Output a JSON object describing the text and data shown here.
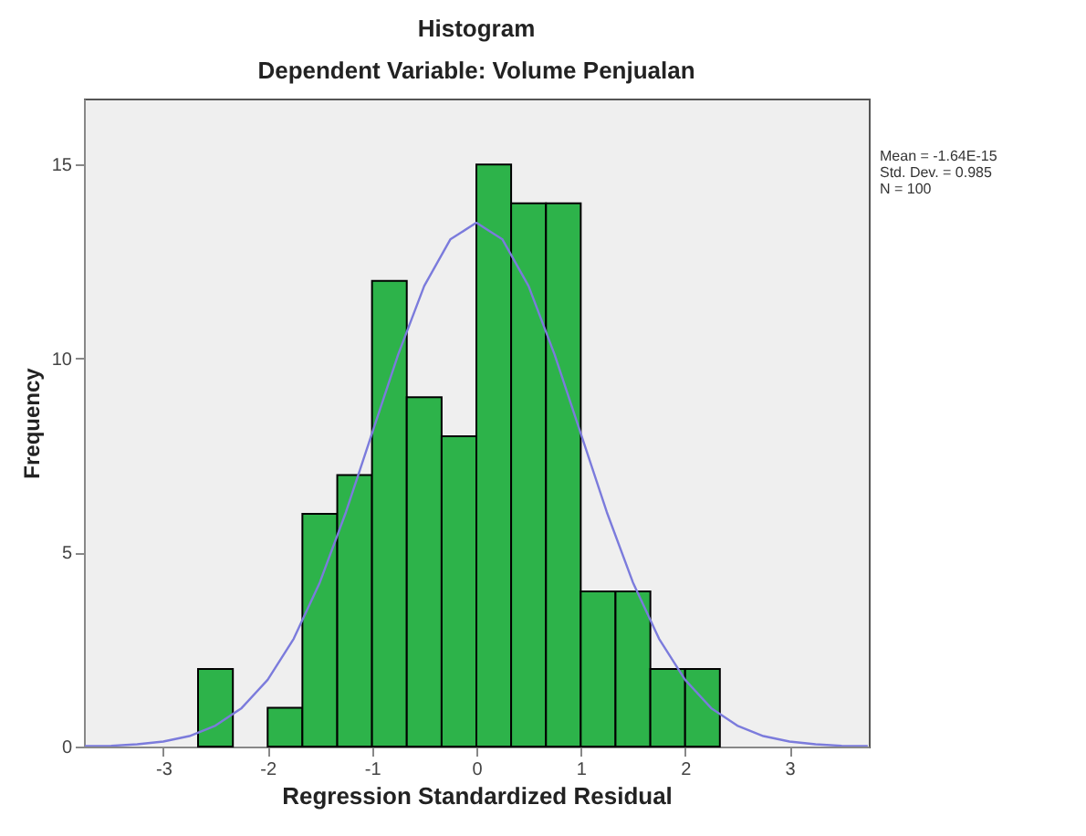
{
  "chart_data": {
    "type": "histogram",
    "title": "Histogram",
    "subtitle": "Dependent Variable: Volume Penjualan",
    "xlabel": "Regression Standardized Residual",
    "ylabel": "Frequency",
    "series": [
      {
        "type": "histogram",
        "color": "#2db34a",
        "bins": [
          -2.667,
          -2.333,
          -2,
          -1.667,
          -1.333,
          -1,
          -0.667,
          -0.333,
          0,
          0.333,
          0.667,
          1,
          1.333,
          1.667,
          2,
          2.333
        ],
        "values": [
          2,
          0,
          1,
          6,
          7,
          12,
          9,
          8,
          15,
          14,
          14,
          4,
          4,
          2,
          2
        ]
      },
      {
        "type": "line",
        "color": "#7b7bdc",
        "x": [
          -3.75,
          -3.5,
          -3.25,
          -3,
          -2.75,
          -2.5,
          -2.25,
          -2,
          -1.75,
          -1.5,
          -1.25,
          -1,
          -0.75,
          -0.5,
          -0.25,
          0,
          0.25,
          0.5,
          0.75,
          1,
          1.25,
          1.5,
          1.75,
          2,
          2.25,
          2.5,
          2.75,
          3,
          3.25,
          3.5,
          3.75
        ],
        "values": [
          0.01,
          0.02,
          0.06,
          0.13,
          0.27,
          0.54,
          0.99,
          1.72,
          2.78,
          4.23,
          6.04,
          8.07,
          10.1,
          11.87,
          13.07,
          13.5,
          13.07,
          11.87,
          10.1,
          8.07,
          6.04,
          4.23,
          2.78,
          1.72,
          0.99,
          0.54,
          0.27,
          0.13,
          0.06,
          0.02,
          0.01
        ]
      }
    ],
    "xlim": [
      -3.76,
      3.76
    ],
    "xticks": [
      {
        "value": -3,
        "label": "-3"
      },
      {
        "value": -2,
        "label": "-2"
      },
      {
        "value": -1,
        "label": "-1"
      },
      0,
      1,
      2,
      3
    ],
    "ylim": [
      0,
      16.7
    ],
    "yticks": [
      0,
      5,
      10,
      15
    ],
    "grid": false,
    "annotations": [
      "Mean = -1.64E-15",
      "Std. Dev. = 0.985",
      "N = 100"
    ]
  }
}
